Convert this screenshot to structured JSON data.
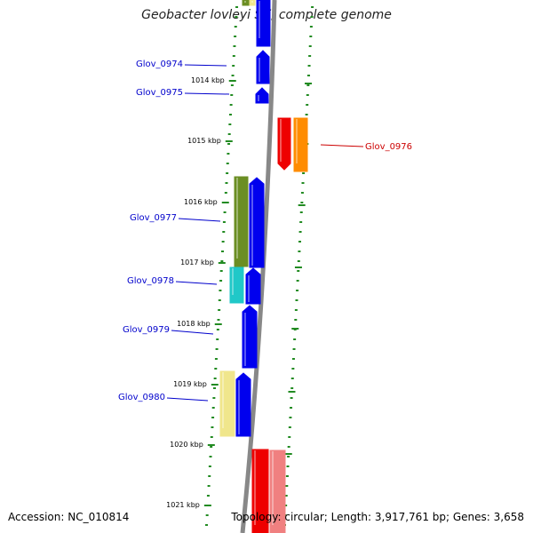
{
  "title": "Geobacter lovleyi SZ, complete genome",
  "accession": "Accession: NC_010814",
  "summary": "Topology: circular; Length: 3,917,761 bp; Genes: 3,658",
  "colors": {
    "blue": "#0000ee",
    "red": "#ee0000",
    "orange": "#ff8c00",
    "olive": "#6b8e23",
    "cyan": "#20c8c8",
    "khaki": "#f0e68c",
    "salmon": "#f08080",
    "green_tick": "#228b22",
    "label_blue": "#0000cc",
    "label_red": "#cc0000",
    "backbone": "#888888"
  },
  "kbp_ticks": [
    {
      "label": "1014 kbp"
    },
    {
      "label": "1015 kbp"
    },
    {
      "label": "1016 kbp"
    },
    {
      "label": "1017 kbp"
    },
    {
      "label": "1018 kbp"
    },
    {
      "label": "1019 kbp"
    },
    {
      "label": "1020 kbp"
    },
    {
      "label": "1021 kbp"
    }
  ],
  "genes": [
    {
      "id": "Glov_0974",
      "strand": "+"
    },
    {
      "id": "Glov_0975",
      "strand": "+"
    },
    {
      "id": "Glov_0976",
      "strand": "-"
    },
    {
      "id": "Glov_0977",
      "strand": "+"
    },
    {
      "id": "Glov_0978",
      "strand": "+"
    },
    {
      "id": "Glov_0979",
      "strand": "+"
    },
    {
      "id": "Glov_0980",
      "strand": "+"
    }
  ]
}
